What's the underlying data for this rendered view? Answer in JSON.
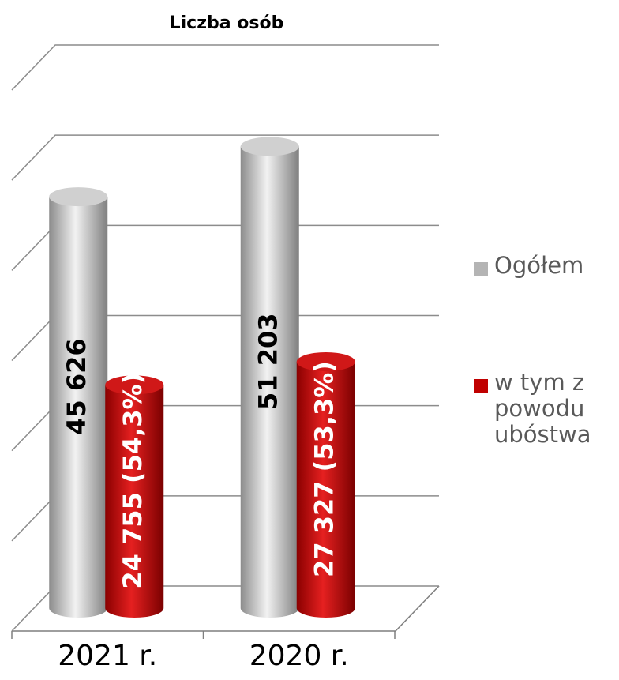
{
  "chart_data": {
    "type": "bar3d",
    "title": "Liczba osób",
    "categories": [
      "2021 r.",
      "2020 r."
    ],
    "series": [
      {
        "name": "Ogółem",
        "color": "#b4b4b4",
        "values": [
          45626,
          51203
        ],
        "value_labels": [
          "45 626",
          "51 203"
        ]
      },
      {
        "name": "w tym z powodu ubóstwa",
        "color": "#c00000",
        "values": [
          24755,
          27327
        ],
        "value_labels": [
          "24 755 (54,3%)",
          "27 327 (53,3%)"
        ]
      }
    ],
    "ylim": [
      0,
      60000
    ],
    "yticks": [
      0,
      10000,
      20000,
      30000,
      40000,
      50000,
      60000
    ],
    "grid": true,
    "legend": "right"
  }
}
